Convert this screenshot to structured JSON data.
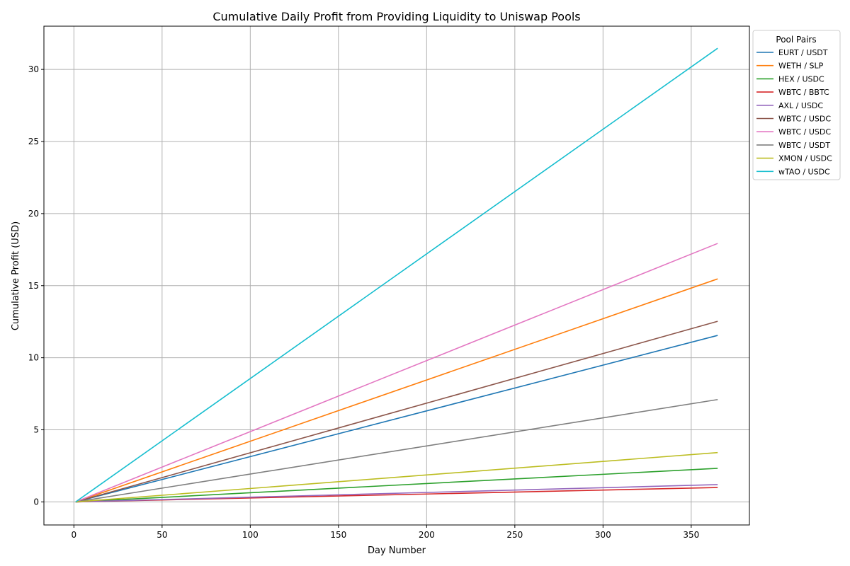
{
  "chart_data": {
    "type": "line",
    "title": "Cumulative Daily Profit from Providing Liquidity to Uniswap Pools",
    "xlabel": "Day Number",
    "ylabel": "Cumulative Profit (USD)",
    "xlim": [
      -17,
      383
    ],
    "ylim": [
      -1.6,
      33
    ],
    "xticks": [
      0,
      50,
      100,
      150,
      200,
      250,
      300,
      350
    ],
    "yticks": [
      0,
      5,
      10,
      15,
      20,
      25,
      30
    ],
    "grid": true,
    "legend": {
      "title": "Pool Pairs",
      "placement": "outside-top-right"
    },
    "series": [
      {
        "name": "EURT / USDT",
        "color": "#1f77b4",
        "x": [
          1,
          365
        ],
        "y": [
          0,
          11.55
        ]
      },
      {
        "name": "WETH / SLP",
        "color": "#ff7f0e",
        "x": [
          1,
          365
        ],
        "y": [
          0,
          15.47
        ]
      },
      {
        "name": "HEX / USDC",
        "color": "#2ca02c",
        "x": [
          1,
          365
        ],
        "y": [
          0,
          2.33
        ]
      },
      {
        "name": "WBTC / BBTC",
        "color": "#d62728",
        "x": [
          1,
          365
        ],
        "y": [
          0,
          1.0
        ]
      },
      {
        "name": "AXL / USDC",
        "color": "#9467bd",
        "x": [
          1,
          365
        ],
        "y": [
          0,
          1.2
        ]
      },
      {
        "name": "WBTC / USDC",
        "color": "#8c564b",
        "x": [
          1,
          365
        ],
        "y": [
          0,
          12.53
        ]
      },
      {
        "name": "WBTC / USDC",
        "color": "#e377c2",
        "x": [
          1,
          365
        ],
        "y": [
          0,
          17.93
        ]
      },
      {
        "name": "WBTC / USDT",
        "color": "#7f7f7f",
        "x": [
          1,
          365
        ],
        "y": [
          0,
          7.1
        ]
      },
      {
        "name": "XMON / USDC",
        "color": "#bcbd22",
        "x": [
          1,
          365
        ],
        "y": [
          0,
          3.42
        ]
      },
      {
        "name": "wTAO / USDC",
        "color": "#17becf",
        "x": [
          1,
          365
        ],
        "y": [
          0,
          31.47
        ]
      }
    ]
  }
}
